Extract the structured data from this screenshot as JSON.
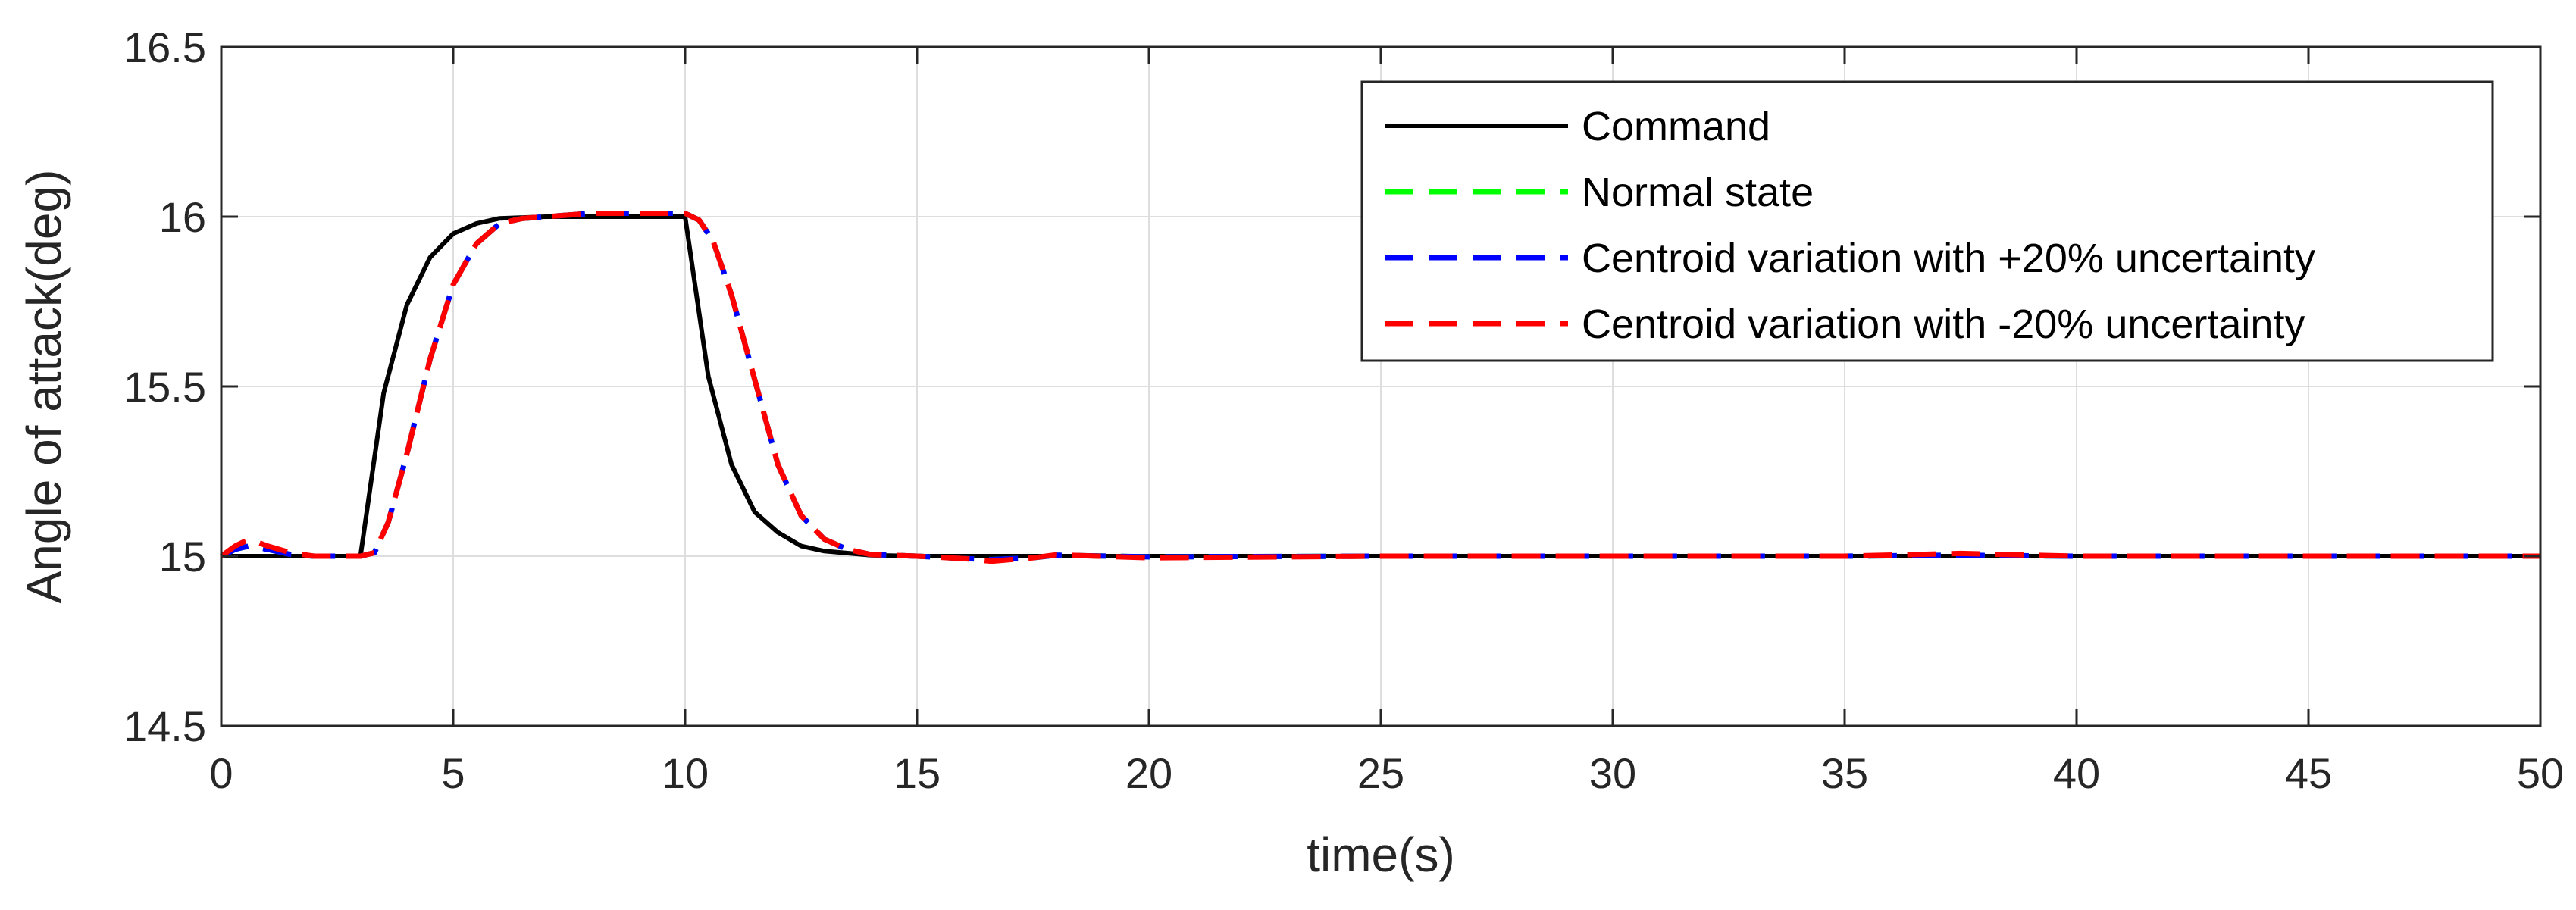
{
  "chart_data": {
    "type": "line",
    "title": "",
    "xlabel": "time(s)",
    "ylabel": "Angle of attack(deg)",
    "xlim": [
      0,
      50
    ],
    "ylim": [
      14.5,
      16.5
    ],
    "xticks": [
      0,
      5,
      10,
      15,
      20,
      25,
      30,
      35,
      40,
      45,
      50
    ],
    "yticks": [
      14.5,
      15,
      15.5,
      16,
      16.5
    ],
    "xtick_labels": [
      "0",
      "5",
      "10",
      "15",
      "20",
      "25",
      "30",
      "35",
      "40",
      "45",
      "50"
    ],
    "ytick_labels": [
      "14.5",
      "15",
      "15.5",
      "16",
      "16.5"
    ],
    "grid": true,
    "legend_position": "top-right",
    "series": [
      {
        "name": "Command",
        "color": "#000000",
        "style": "solid",
        "x": [
          0,
          3,
          3.5,
          4,
          4.5,
          5,
          5.5,
          6,
          7,
          8,
          10,
          10.5,
          11,
          11.5,
          12,
          12.5,
          13,
          14,
          15,
          20,
          30,
          40,
          50
        ],
        "y": [
          15,
          15,
          15.48,
          15.74,
          15.88,
          15.95,
          15.98,
          15.995,
          16,
          16,
          16,
          15.53,
          15.27,
          15.13,
          15.07,
          15.03,
          15.015,
          15.003,
          15,
          15,
          15,
          15,
          15
        ]
      },
      {
        "name": "Normal state",
        "color": "#00ff00",
        "style": "dashed",
        "x": [
          0,
          0.3,
          0.6,
          1,
          1.5,
          2,
          2.5,
          3,
          3.3,
          3.6,
          4,
          4.5,
          5,
          5.5,
          6,
          6.5,
          7,
          8,
          9,
          10,
          10.3,
          10.6,
          11,
          11.5,
          12,
          12.5,
          13,
          13.5,
          14,
          15,
          16,
          16.6,
          17.5,
          18,
          20,
          25,
          30,
          35,
          37.5,
          40,
          45,
          50
        ],
        "y": [
          15,
          15.02,
          15.03,
          15.02,
          15.005,
          15,
          15,
          15,
          15.01,
          15.1,
          15.3,
          15.58,
          15.8,
          15.92,
          15.98,
          15.995,
          16,
          16.01,
          16.01,
          16.01,
          15.99,
          15.93,
          15.77,
          15.52,
          15.27,
          15.12,
          15.05,
          15.02,
          15.005,
          15,
          14.993,
          14.99,
          14.995,
          15.003,
          14.998,
          15,
          15,
          15,
          15.003,
          15,
          15,
          15
        ]
      },
      {
        "name": "Centroid variation with +20% uncertainty",
        "color": "#0000ff",
        "style": "dashed",
        "x": [
          0,
          0.3,
          0.6,
          1,
          1.5,
          2,
          2.5,
          3,
          3.3,
          3.6,
          4,
          4.5,
          5,
          5.5,
          6,
          6.5,
          7,
          8,
          9,
          10,
          10.3,
          10.6,
          11,
          11.5,
          12,
          12.5,
          13,
          13.5,
          14,
          15,
          16,
          16.6,
          17.5,
          18,
          20,
          25,
          30,
          35,
          37.5,
          40,
          45,
          50
        ],
        "y": [
          15,
          15.02,
          15.03,
          15.02,
          15.005,
          15,
          15,
          15,
          15.01,
          15.1,
          15.3,
          15.58,
          15.8,
          15.92,
          15.98,
          15.995,
          16,
          16.01,
          16.01,
          16.01,
          15.99,
          15.93,
          15.77,
          15.52,
          15.27,
          15.12,
          15.05,
          15.02,
          15.005,
          15,
          14.993,
          14.99,
          14.995,
          15.003,
          14.998,
          15,
          15,
          15,
          15.003,
          15,
          15,
          15
        ]
      },
      {
        "name": "Centroid variation with -20% uncertainty",
        "color": "#ff0000",
        "style": "dashed",
        "x": [
          0,
          0.3,
          0.6,
          1,
          1.5,
          2,
          2.5,
          3,
          3.3,
          3.6,
          4,
          4.5,
          5,
          5.5,
          6,
          6.5,
          7,
          8,
          9,
          10,
          10.3,
          10.6,
          11,
          11.5,
          12,
          12.5,
          13,
          13.5,
          14,
          15,
          16,
          16.6,
          17.5,
          18,
          20,
          25,
          30,
          35,
          37.5,
          40,
          45,
          50
        ],
        "y": [
          15,
          15.03,
          15.05,
          15.03,
          15.01,
          15,
          15,
          15,
          15.01,
          15.1,
          15.3,
          15.58,
          15.8,
          15.92,
          15.98,
          15.995,
          16,
          16.01,
          16.01,
          16.01,
          15.99,
          15.93,
          15.77,
          15.52,
          15.27,
          15.12,
          15.05,
          15.02,
          15.005,
          15,
          14.993,
          14.985,
          14.995,
          15.004,
          14.995,
          15,
          15,
          15,
          15.008,
          15,
          15,
          15
        ]
      }
    ]
  }
}
